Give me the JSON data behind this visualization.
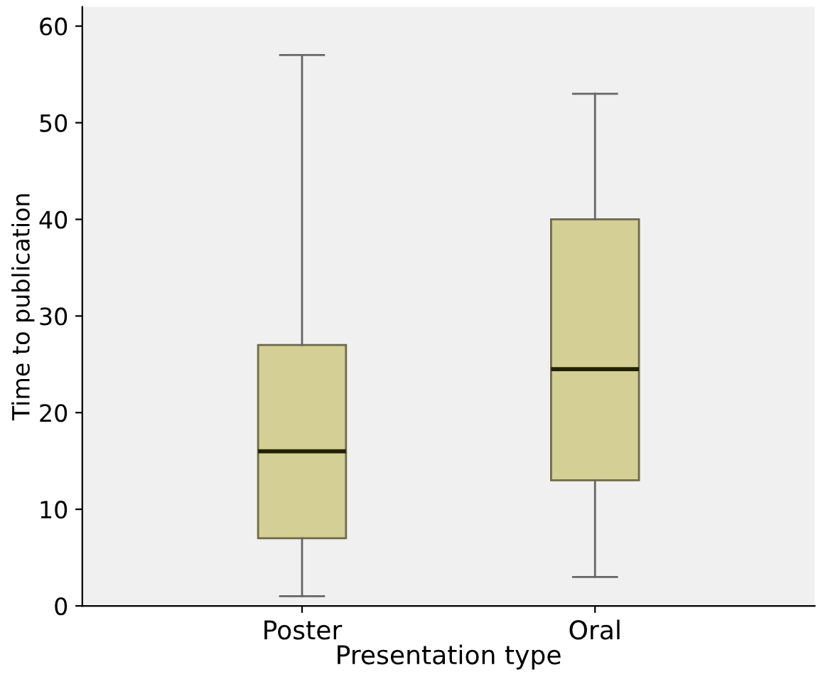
{
  "chart_data": {
    "type": "box",
    "xlabel": "Presentation type",
    "ylabel": "Time to publication",
    "categories": [
      "Poster",
      "Oral"
    ],
    "boxes": [
      {
        "low": 1,
        "q1": 7,
        "median": 16,
        "q3": 27,
        "high": 57
      },
      {
        "low": 3,
        "q1": 13,
        "median": 24.5,
        "q3": 40,
        "high": 53
      }
    ],
    "color": "#d3cf95",
    "ylim": [
      0,
      62
    ],
    "yticks": [
      0,
      10,
      20,
      30,
      40,
      50,
      60
    ],
    "grid": false
  }
}
